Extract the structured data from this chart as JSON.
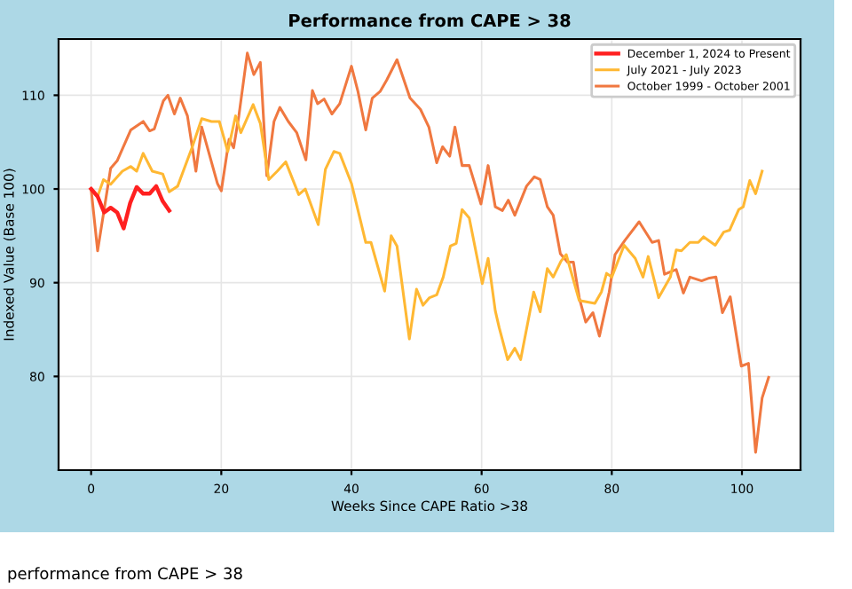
{
  "chart_data": {
    "type": "line",
    "title": "Performance from CAPE > 38",
    "xlabel": "Weeks Since CAPE Ratio >38",
    "ylabel": "Indexed Value (Base 100)",
    "xlim": [
      -5,
      109
    ],
    "ylim": [
      70,
      116
    ],
    "xticks": [
      0,
      20,
      40,
      60,
      80,
      100
    ],
    "yticks": [
      80,
      90,
      100,
      110
    ],
    "grid": true,
    "legend": "top right",
    "line_style": "solid",
    "annotations": [
      "performance from CAPE > 38"
    ],
    "series": [
      {
        "name": "December 1, 2024 to Present",
        "color": "#ff2020",
        "x": [
          0,
          1,
          2,
          3,
          4,
          5,
          6,
          7,
          8,
          9,
          10,
          11,
          12
        ],
        "values": [
          100,
          99.2,
          97.5,
          98,
          97.5,
          95.8,
          98.5,
          100.2,
          99.5,
          99.5,
          100.3,
          98.7,
          97.7
        ]
      },
      {
        "name": "July 2021 - July 2023",
        "color": "#ffb833",
        "x": [
          0,
          1,
          1.9,
          3,
          4.8,
          6.1,
          7,
          8,
          9.4,
          11,
          12,
          13.3,
          15.5,
          17,
          18.5,
          19.7,
          21,
          22.2,
          23,
          24.9,
          26,
          27.3,
          28.6,
          29.9,
          31.9,
          32.9,
          34.9,
          36,
          37.3,
          38.2,
          40,
          42.2,
          43,
          45.1,
          46.1,
          47,
          48.9,
          50,
          51,
          52,
          53.1,
          54.1,
          55.2,
          56.1,
          57,
          58.1,
          60.1,
          61,
          62.1,
          62.7,
          64,
          65.1,
          66,
          68,
          69,
          70.1,
          71,
          72.2,
          73,
          75,
          77.4,
          78.4,
          79.2,
          80,
          81.9,
          83.6,
          84.8,
          85.6,
          87.2,
          89,
          89.9,
          90.7,
          92,
          93.3,
          94.1,
          95.9,
          97.2,
          98.1,
          99.5,
          100.2,
          101.2,
          102.1,
          103.1
        ],
        "values": [
          100,
          99.2,
          101,
          100.5,
          101.9,
          102.4,
          101.9,
          103.8,
          101.9,
          101.6,
          99.7,
          100.3,
          104.4,
          107.5,
          107.2,
          107.2,
          104,
          107.8,
          106,
          109,
          107,
          101,
          101.9,
          102.9,
          99.4,
          100,
          96.2,
          102.1,
          104,
          103.8,
          100.6,
          94.3,
          94.3,
          89.1,
          95,
          93.9,
          84,
          89.3,
          87.6,
          88.4,
          88.7,
          90.6,
          93.9,
          94.2,
          97.8,
          96.9,
          89.9,
          92.6,
          87,
          85.2,
          81.8,
          83,
          81.8,
          89,
          86.9,
          91.5,
          90.6,
          92.3,
          93,
          88.1,
          87.8,
          89,
          91,
          90.6,
          94,
          92.6,
          90.6,
          92.8,
          88.4,
          90.6,
          93.5,
          93.4,
          94.3,
          94.3,
          94.9,
          94,
          95.4,
          95.6,
          97.8,
          98.1,
          100.9,
          99.5,
          101.9
        ]
      },
      {
        "name": "October 1999 - October 2001",
        "color": "#f07840",
        "x": [
          0,
          1,
          3,
          4,
          6.1,
          8,
          9,
          9.7,
          11.1,
          11.8,
          12.8,
          13.7,
          14.8,
          16.1,
          17,
          19.4,
          20,
          21.2,
          21.9,
          22.7,
          24,
          25,
          26,
          27,
          28.1,
          29,
          30.3,
          31.6,
          33,
          34,
          34.8,
          35.8,
          37,
          38.2,
          40,
          41,
          42.2,
          43.2,
          44.4,
          45.4,
          47,
          49,
          50.6,
          51.9,
          53.1,
          54,
          55.1,
          55.9,
          57,
          58.1,
          59.9,
          61,
          62.1,
          63.2,
          64.1,
          65.1,
          66.9,
          68.1,
          69,
          70.1,
          71,
          72.1,
          73.2,
          74.1,
          75,
          76,
          77.1,
          78.1,
          79.6,
          80.5,
          82,
          84.2,
          86.2,
          87.2,
          88.1,
          89.9,
          91,
          92,
          93.8,
          95,
          96,
          97,
          98.2,
          99.9,
          101,
          102.1,
          103.1,
          104.1
        ],
        "values": [
          100,
          93.4,
          102.2,
          103,
          106.3,
          107.2,
          106.2,
          106.4,
          109.4,
          110,
          108,
          109.7,
          107.8,
          101.9,
          106.6,
          100.6,
          99.8,
          105.3,
          104.4,
          107.8,
          114.5,
          112.2,
          113.5,
          101.4,
          107.2,
          108.7,
          107.2,
          106,
          103.1,
          110.5,
          109.1,
          109.6,
          108,
          109.1,
          113.1,
          110.4,
          106.3,
          109.7,
          110.4,
          111.6,
          113.8,
          109.7,
          108.5,
          106.6,
          102.8,
          104.5,
          103.5,
          106.6,
          102.5,
          102.5,
          98.4,
          102.5,
          98.1,
          97.7,
          98.8,
          97.2,
          100.3,
          101.3,
          101,
          98.1,
          97.2,
          93.1,
          92.2,
          92.2,
          88.4,
          85.8,
          86.8,
          84.3,
          89,
          93,
          94.5,
          96.5,
          94.3,
          94.5,
          90.9,
          91.4,
          88.9,
          90.6,
          90.2,
          90.5,
          90.6,
          86.8,
          88.5,
          81.1,
          81.4,
          71.9,
          77.7,
          79.9
        ]
      }
    ]
  }
}
